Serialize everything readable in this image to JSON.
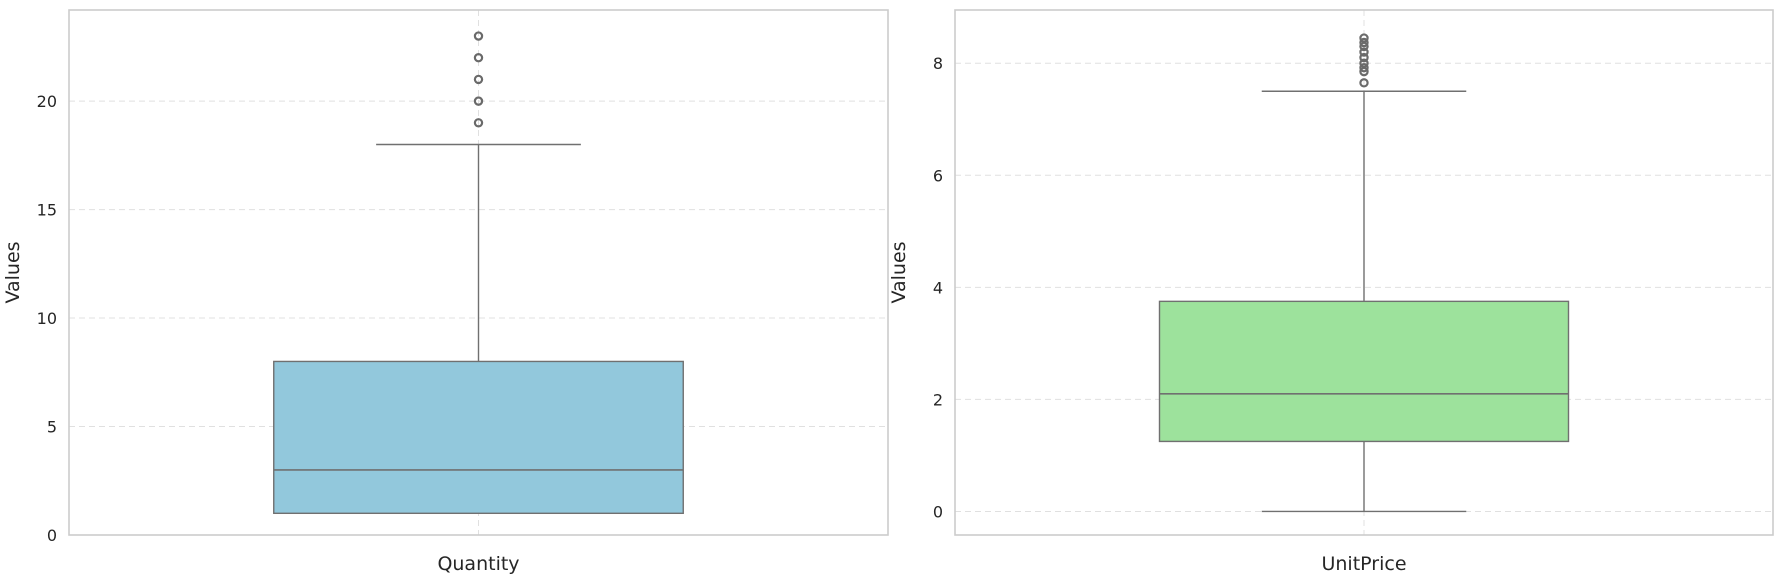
{
  "chart_data": [
    {
      "type": "box",
      "xlabel": "Quantity",
      "ylabel": "Values",
      "ylim": [
        0,
        24.2
      ],
      "yticks": [
        0,
        5,
        10,
        15,
        20
      ],
      "grid": true,
      "color": "#92c8dc",
      "stats": {
        "whisker_low": 1,
        "q1": 1,
        "median": 3,
        "q3": 8,
        "whisker_high": 18
      },
      "outliers": [
        19,
        20,
        21,
        22,
        23
      ]
    },
    {
      "type": "box",
      "xlabel": "UnitPrice",
      "ylabel": "Values",
      "ylim": [
        -0.42,
        8.95
      ],
      "yticks": [
        0,
        2,
        4,
        6,
        8
      ],
      "grid": true,
      "color": "#9de29c",
      "stats": {
        "whisker_low": 0,
        "q1": 1.25,
        "median": 2.1,
        "q3": 3.75,
        "whisker_high": 7.5
      },
      "outliers": [
        7.65,
        7.85,
        7.92,
        8.0,
        8.1,
        8.2,
        8.3,
        8.37,
        8.45
      ]
    }
  ]
}
